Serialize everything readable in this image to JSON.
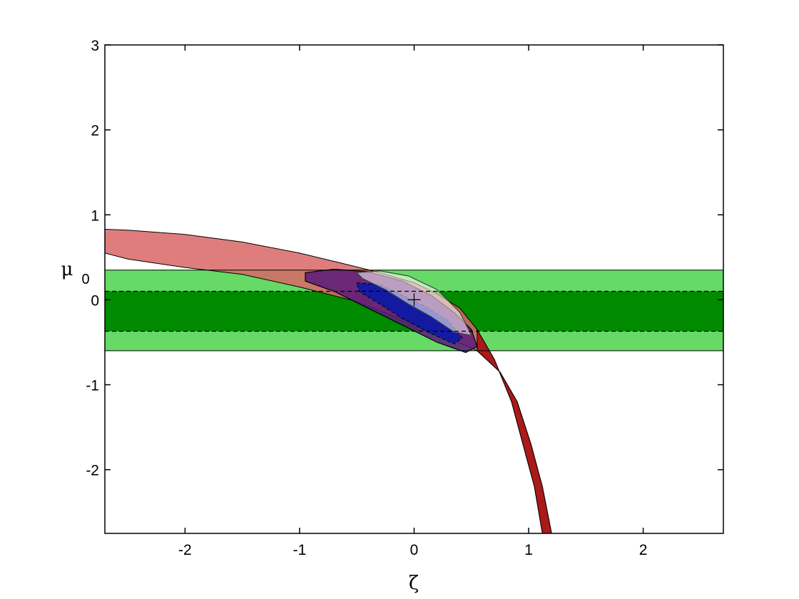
{
  "chart_data": {
    "type": "area",
    "xlabel": "ζ",
    "ylabel": "μ",
    "ylabel_subscript": "0",
    "xlim": [
      -2.7,
      2.7
    ],
    "ylim": [
      -2.75,
      3.0
    ],
    "xticks": [
      -2,
      -1,
      0,
      1,
      2
    ],
    "yticks": [
      -2,
      -1,
      0,
      1,
      2,
      3
    ],
    "grid": false,
    "colors": {
      "green_outer": "#66d966",
      "green_inner": "#008b00",
      "red_band": "#d96666",
      "dark_red": "#a50f0f",
      "purple": "#5a1a7a",
      "blue": "#0a1aa6",
      "white_core": "#ffffff"
    },
    "horizontal_bands": {
      "outer": [
        -0.6,
        0.35
      ],
      "inner": [
        -0.37,
        0.1
      ]
    },
    "best_fit_marker": {
      "x": 0.0,
      "y": 0.0
    },
    "series": [
      {
        "role": "red outer band (curved)",
        "upper": [
          [
            -2.7,
            0.83
          ],
          [
            -2.5,
            0.82
          ],
          [
            -2.0,
            0.77
          ],
          [
            -1.5,
            0.68
          ],
          [
            -1.0,
            0.55
          ],
          [
            -0.6,
            0.42
          ],
          [
            -0.3,
            0.32
          ],
          [
            0.0,
            0.2
          ],
          [
            0.2,
            0.07
          ],
          [
            0.4,
            -0.1
          ],
          [
            0.55,
            -0.35
          ],
          [
            0.7,
            -0.7
          ],
          [
            0.85,
            -1.2
          ],
          [
            0.95,
            -1.7
          ],
          [
            1.05,
            -2.2
          ],
          [
            1.12,
            -2.75
          ]
        ],
        "lower": [
          [
            1.2,
            -2.75
          ],
          [
            1.12,
            -2.2
          ],
          [
            1.02,
            -1.7
          ],
          [
            0.9,
            -1.2
          ],
          [
            0.75,
            -0.85
          ],
          [
            0.55,
            -0.6
          ],
          [
            0.35,
            -0.48
          ],
          [
            0.1,
            -0.32
          ],
          [
            -0.2,
            -0.18
          ],
          [
            -0.5,
            -0.02
          ],
          [
            -1.0,
            0.15
          ],
          [
            -1.5,
            0.3
          ],
          [
            -2.0,
            0.38
          ],
          [
            -2.5,
            0.48
          ],
          [
            -2.7,
            0.55
          ]
        ]
      },
      {
        "role": "purple 2-sigma region",
        "points": [
          [
            -0.95,
            0.32
          ],
          [
            -0.7,
            0.36
          ],
          [
            -0.4,
            0.33
          ],
          [
            -0.1,
            0.22
          ],
          [
            0.15,
            0.05
          ],
          [
            0.35,
            -0.15
          ],
          [
            0.5,
            -0.35
          ],
          [
            0.55,
            -0.55
          ],
          [
            0.45,
            -0.62
          ],
          [
            0.2,
            -0.5
          ],
          [
            -0.1,
            -0.3
          ],
          [
            -0.4,
            -0.1
          ],
          [
            -0.7,
            0.1
          ],
          [
            -0.95,
            0.22
          ]
        ]
      },
      {
        "role": "blue 1-sigma region",
        "points": [
          [
            -0.5,
            0.2
          ],
          [
            -0.3,
            0.18
          ],
          [
            -0.1,
            0.05
          ],
          [
            0.1,
            -0.08
          ],
          [
            0.3,
            -0.25
          ],
          [
            0.42,
            -0.45
          ],
          [
            0.35,
            -0.52
          ],
          [
            0.15,
            -0.4
          ],
          [
            -0.1,
            -0.22
          ],
          [
            -0.3,
            -0.05
          ],
          [
            -0.48,
            0.1
          ]
        ]
      },
      {
        "role": "white combined region",
        "points": [
          [
            -0.5,
            0.32
          ],
          [
            -0.3,
            0.34
          ],
          [
            -0.05,
            0.28
          ],
          [
            0.2,
            0.12
          ],
          [
            0.4,
            -0.15
          ],
          [
            0.5,
            -0.42
          ],
          [
            0.35,
            -0.38
          ],
          [
            0.15,
            -0.2
          ],
          [
            -0.05,
            -0.05
          ],
          [
            -0.25,
            0.12
          ],
          [
            -0.45,
            0.25
          ]
        ]
      }
    ]
  }
}
